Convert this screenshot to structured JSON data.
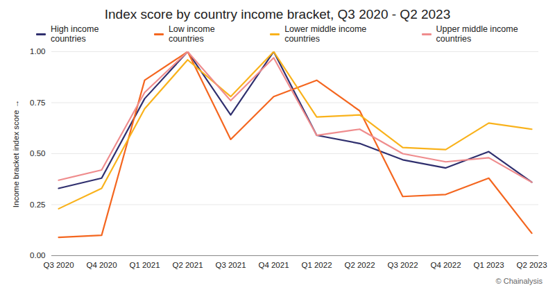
{
  "chart_data": {
    "type": "line",
    "title": "Index score by country income bracket, Q3 2020 - Q2 2023",
    "y_label": "Income bracket index score",
    "caption": "© Chainalysis",
    "categories": [
      "Q3 2020",
      "Q4 2020",
      "Q1 2021",
      "Q2 2021",
      "Q3 2021",
      "Q4 2021",
      "Q1 2022",
      "Q2 2022",
      "Q3 2022",
      "Q4 2022",
      "Q1 2023",
      "Q2 2023"
    ],
    "series": [
      {
        "name": "High income countries",
        "color": "#2f2f6e",
        "values": [
          0.33,
          0.38,
          0.77,
          1.0,
          0.69,
          1.0,
          0.59,
          0.55,
          0.47,
          0.43,
          0.51,
          0.36
        ]
      },
      {
        "name": "Low income countries",
        "color": "#f4661f",
        "values": [
          0.09,
          0.1,
          0.86,
          1.0,
          0.57,
          0.78,
          0.86,
          0.71,
          0.29,
          0.3,
          0.38,
          0.11
        ]
      },
      {
        "name": "Lower middle income countries",
        "color": "#f9b21b",
        "values": [
          0.23,
          0.33,
          0.72,
          0.96,
          0.78,
          1.0,
          0.68,
          0.69,
          0.53,
          0.52,
          0.65,
          0.62
        ]
      },
      {
        "name": "Upper middle income countries",
        "color": "#ef8c8d",
        "values": [
          0.37,
          0.42,
          0.8,
          1.0,
          0.76,
          0.97,
          0.59,
          0.62,
          0.5,
          0.46,
          0.48,
          0.36
        ]
      }
    ],
    "ylim": [
      0,
      1
    ],
    "yticks": [
      {
        "value": 0,
        "label": "0.00"
      },
      {
        "value": 0.25,
        "label": "0.25"
      },
      {
        "value": 0.5,
        "label": "0.50"
      },
      {
        "value": 0.75,
        "label": "0.75"
      },
      {
        "value": 1,
        "label": "1.00"
      }
    ],
    "grid": true,
    "legend": "top"
  }
}
